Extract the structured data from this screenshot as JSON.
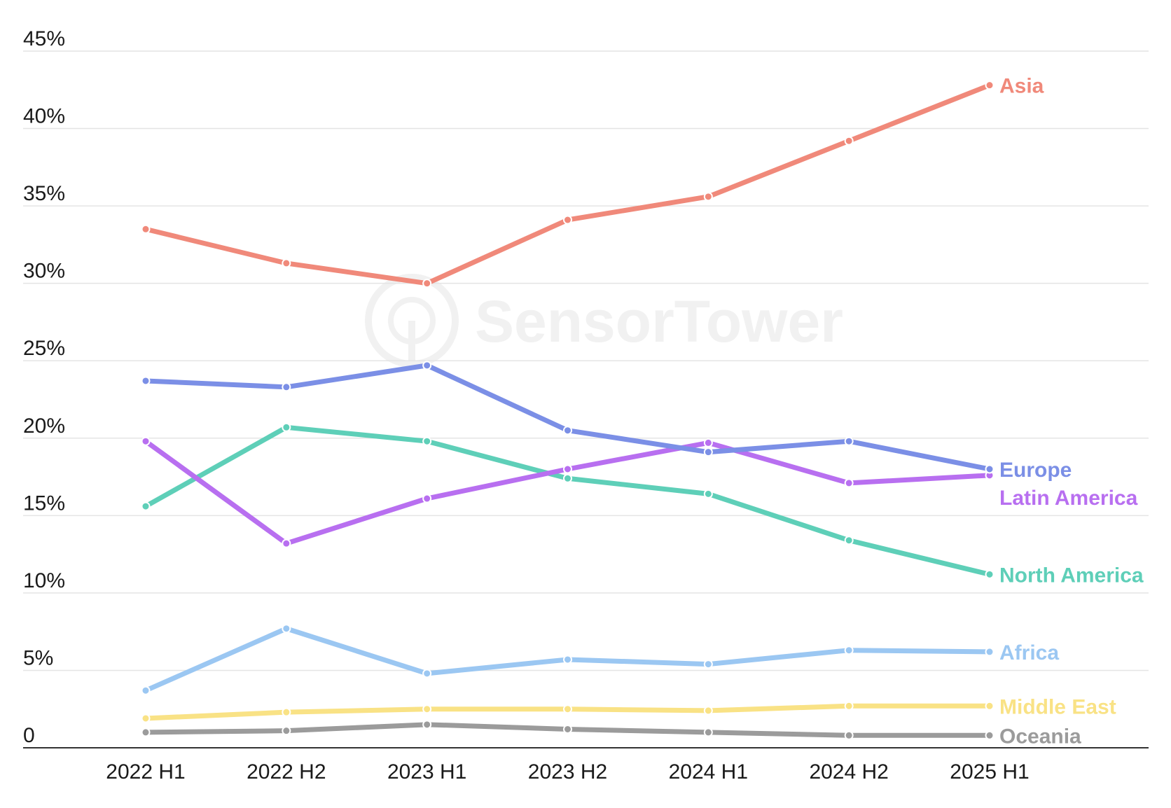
{
  "chart_data": {
    "type": "line",
    "title": "",
    "xlabel": "",
    "ylabel": "",
    "categories": [
      "2022 H1",
      "2022 H2",
      "2023 H1",
      "2023 H2",
      "2024 H1",
      "2024 H2",
      "2025 H1"
    ],
    "ylim": [
      0,
      45
    ],
    "yticks": [
      0,
      5,
      10,
      15,
      20,
      25,
      30,
      35,
      40,
      45
    ],
    "ytick_labels": [
      "0",
      "5%",
      "10%",
      "15%",
      "20%",
      "25%",
      "30%",
      "35%",
      "40%",
      "45%"
    ],
    "grid": true,
    "legend": "direct labels at right end of each line",
    "series": [
      {
        "name": "Asia",
        "color": "#f0897a",
        "values": [
          33.5,
          31.3,
          30.0,
          34.1,
          35.6,
          39.2,
          42.8
        ]
      },
      {
        "name": "Europe",
        "color": "#7b8fe6",
        "values": [
          23.7,
          23.3,
          24.7,
          20.5,
          19.1,
          19.8,
          18.0
        ]
      },
      {
        "name": "Latin America",
        "color": "#b86ff0",
        "values": [
          19.8,
          13.2,
          16.1,
          18.0,
          19.7,
          17.1,
          17.6
        ]
      },
      {
        "name": "North America",
        "color": "#5ecfb8",
        "values": [
          15.6,
          20.7,
          19.8,
          17.4,
          16.4,
          13.4,
          11.2
        ]
      },
      {
        "name": "Africa",
        "color": "#9bc7f2",
        "values": [
          3.7,
          7.7,
          4.8,
          5.7,
          5.4,
          6.3,
          6.2
        ]
      },
      {
        "name": "Middle East",
        "color": "#f9e285",
        "values": [
          1.9,
          2.3,
          2.5,
          2.5,
          2.4,
          2.7,
          2.7
        ]
      },
      {
        "name": "Oceania",
        "color": "#9b9b9b",
        "values": [
          1.0,
          1.1,
          1.5,
          1.2,
          1.0,
          0.8,
          0.8
        ]
      }
    ],
    "watermark": "SensorTower"
  }
}
